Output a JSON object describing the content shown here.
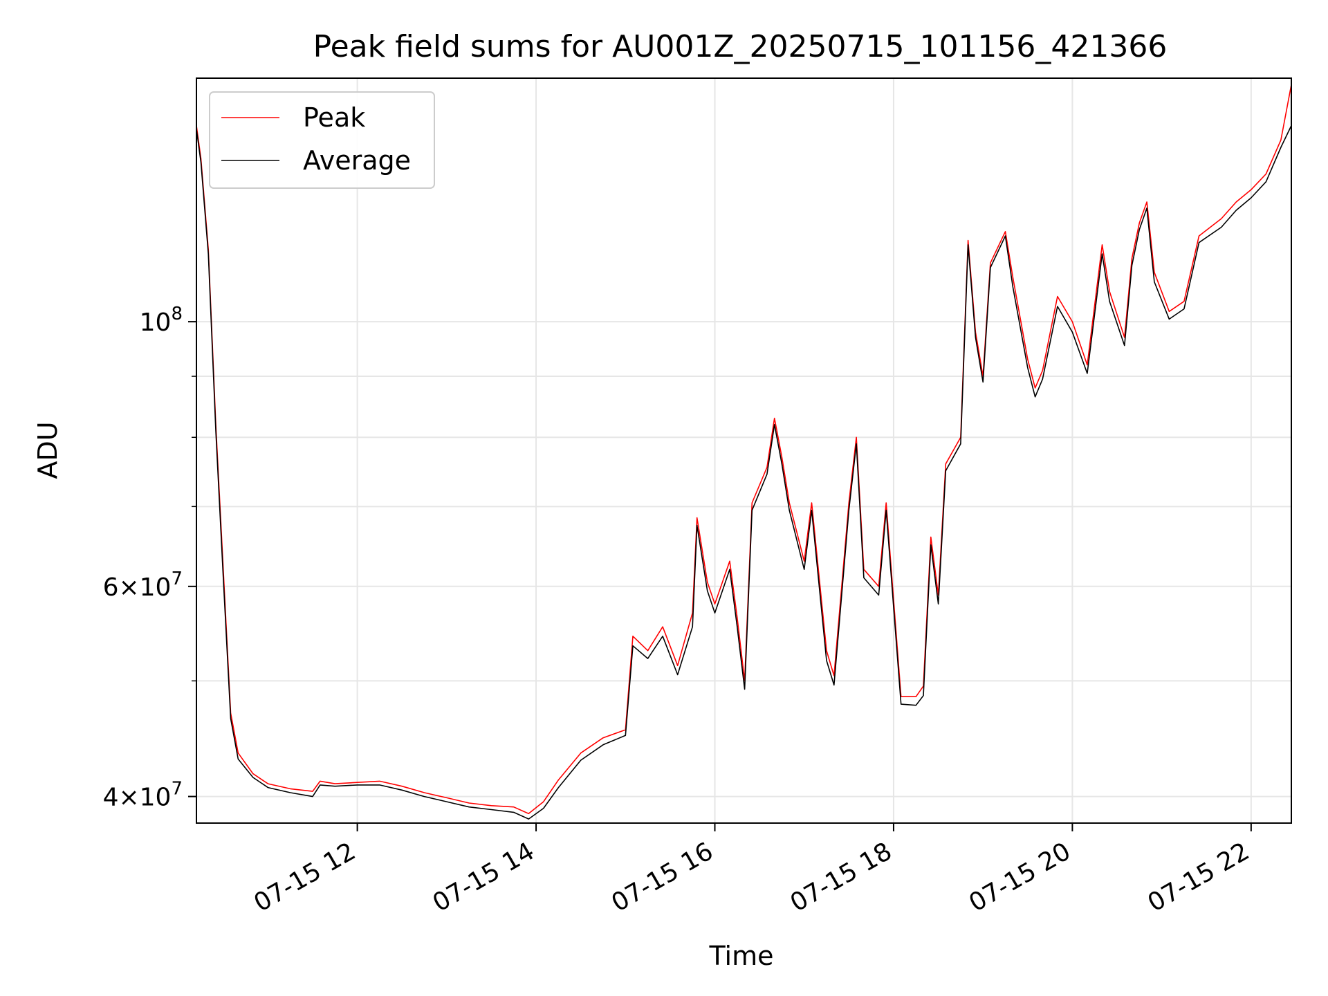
{
  "chart_data": {
    "type": "line",
    "title": "Peak field sums for AU001Z_20250715_101156_421366",
    "xlabel": "Time",
    "ylabel": "ADU",
    "y_scale": "log",
    "grid": true,
    "legend_position": "top-left",
    "xlim": [
      "2025-07-15T10:12",
      "2025-07-15T22:27"
    ],
    "ylim": [
      38000000,
      160000000
    ],
    "x_ticks": [
      {
        "value": "2025-07-15T12:00",
        "label": "07-15 12"
      },
      {
        "value": "2025-07-15T14:00",
        "label": "07-15 14"
      },
      {
        "value": "2025-07-15T16:00",
        "label": "07-15 16"
      },
      {
        "value": "2025-07-15T18:00",
        "label": "07-15 18"
      },
      {
        "value": "2025-07-15T20:00",
        "label": "07-15 20"
      },
      {
        "value": "2025-07-15T22:00",
        "label": "07-15 22"
      }
    ],
    "y_ticks": [
      {
        "value": 40000000,
        "label_mantissa": "4×10",
        "label_exp": "7"
      },
      {
        "value": 60000000,
        "label_mantissa": "6×10",
        "label_exp": "7"
      },
      {
        "value": 100000000,
        "label_mantissa": "10",
        "label_exp": "8"
      }
    ],
    "y_minor_ticks": [
      50000000,
      70000000,
      80000000,
      90000000
    ],
    "series": [
      {
        "name": "Peak",
        "color": "#ff0000",
        "points": [
          [
            "2025-07-15T10:12",
            146000000
          ],
          [
            "2025-07-15T10:15",
            137000000
          ],
          [
            "2025-07-15T10:20",
            115000000
          ],
          [
            "2025-07-15T10:25",
            82000000
          ],
          [
            "2025-07-15T10:30",
            62000000
          ],
          [
            "2025-07-15T10:35",
            47000000
          ],
          [
            "2025-07-15T10:40",
            43500000
          ],
          [
            "2025-07-15T10:50",
            41800000
          ],
          [
            "2025-07-15T11:00",
            41000000
          ],
          [
            "2025-07-15T11:15",
            40600000
          ],
          [
            "2025-07-15T11:30",
            40400000
          ],
          [
            "2025-07-15T11:35",
            41200000
          ],
          [
            "2025-07-15T11:45",
            41000000
          ],
          [
            "2025-07-15T12:00",
            41100000
          ],
          [
            "2025-07-15T12:15",
            41200000
          ],
          [
            "2025-07-15T12:30",
            40800000
          ],
          [
            "2025-07-15T12:45",
            40300000
          ],
          [
            "2025-07-15T13:00",
            39900000
          ],
          [
            "2025-07-15T13:15",
            39500000
          ],
          [
            "2025-07-15T13:30",
            39300000
          ],
          [
            "2025-07-15T13:45",
            39200000
          ],
          [
            "2025-07-15T13:55",
            38700000
          ],
          [
            "2025-07-15T14:05",
            39600000
          ],
          [
            "2025-07-15T14:15",
            41300000
          ],
          [
            "2025-07-15T14:30",
            43500000
          ],
          [
            "2025-07-15T14:45",
            44800000
          ],
          [
            "2025-07-15T15:00",
            45500000
          ],
          [
            "2025-07-15T15:05",
            54500000
          ],
          [
            "2025-07-15T15:15",
            53000000
          ],
          [
            "2025-07-15T15:25",
            55500000
          ],
          [
            "2025-07-15T15:35",
            51500000
          ],
          [
            "2025-07-15T15:45",
            57000000
          ],
          [
            "2025-07-15T15:48",
            68500000
          ],
          [
            "2025-07-15T15:55",
            60500000
          ],
          [
            "2025-07-15T16:00",
            58000000
          ],
          [
            "2025-07-15T16:10",
            63000000
          ],
          [
            "2025-07-15T16:15",
            56500000
          ],
          [
            "2025-07-15T16:20",
            50000000
          ],
          [
            "2025-07-15T16:25",
            70500000
          ],
          [
            "2025-07-15T16:35",
            75500000
          ],
          [
            "2025-07-15T16:40",
            83000000
          ],
          [
            "2025-07-15T16:45",
            77000000
          ],
          [
            "2025-07-15T16:50",
            70500000
          ],
          [
            "2025-07-15T17:00",
            63000000
          ],
          [
            "2025-07-15T17:05",
            70500000
          ],
          [
            "2025-07-15T17:15",
            53000000
          ],
          [
            "2025-07-15T17:20",
            50500000
          ],
          [
            "2025-07-15T17:30",
            70500000
          ],
          [
            "2025-07-15T17:35",
            80000000
          ],
          [
            "2025-07-15T17:40",
            62000000
          ],
          [
            "2025-07-15T17:50",
            60000000
          ],
          [
            "2025-07-15T17:55",
            70500000
          ],
          [
            "2025-07-15T18:05",
            48500000
          ],
          [
            "2025-07-15T18:15",
            48500000
          ],
          [
            "2025-07-15T18:20",
            49500000
          ],
          [
            "2025-07-15T18:25",
            66000000
          ],
          [
            "2025-07-15T18:30",
            59000000
          ],
          [
            "2025-07-15T18:35",
            76000000
          ],
          [
            "2025-07-15T18:45",
            80000000
          ],
          [
            "2025-07-15T18:50",
            117000000
          ],
          [
            "2025-07-15T18:55",
            98000000
          ],
          [
            "2025-07-15T19:00",
            90000000
          ],
          [
            "2025-07-15T19:05",
            112000000
          ],
          [
            "2025-07-15T19:15",
            119000000
          ],
          [
            "2025-07-15T19:20",
            109000000
          ],
          [
            "2025-07-15T19:30",
            93000000
          ],
          [
            "2025-07-15T19:35",
            88000000
          ],
          [
            "2025-07-15T19:40",
            91000000
          ],
          [
            "2025-07-15T19:50",
            105000000
          ],
          [
            "2025-07-15T20:00",
            100000000
          ],
          [
            "2025-07-15T20:10",
            92000000
          ],
          [
            "2025-07-15T20:20",
            116000000
          ],
          [
            "2025-07-15T20:25",
            106000000
          ],
          [
            "2025-07-15T20:35",
            97000000
          ],
          [
            "2025-07-15T20:40",
            113000000
          ],
          [
            "2025-07-15T20:45",
            121000000
          ],
          [
            "2025-07-15T20:50",
            126000000
          ],
          [
            "2025-07-15T20:55",
            110000000
          ],
          [
            "2025-07-15T21:05",
            102000000
          ],
          [
            "2025-07-15T21:15",
            104000000
          ],
          [
            "2025-07-15T21:25",
            118000000
          ],
          [
            "2025-07-15T21:40",
            122000000
          ],
          [
            "2025-07-15T21:50",
            126000000
          ],
          [
            "2025-07-15T22:00",
            129000000
          ],
          [
            "2025-07-15T22:10",
            133000000
          ],
          [
            "2025-07-15T22:20",
            142000000
          ],
          [
            "2025-07-15T22:27",
            158000000
          ]
        ]
      },
      {
        "name": "Average",
        "color": "#000000",
        "points": [
          [
            "2025-07-15T10:12",
            145000000
          ],
          [
            "2025-07-15T10:15",
            136000000
          ],
          [
            "2025-07-15T10:20",
            114000000
          ],
          [
            "2025-07-15T10:25",
            81000000
          ],
          [
            "2025-07-15T10:30",
            61000000
          ],
          [
            "2025-07-15T10:35",
            46500000
          ],
          [
            "2025-07-15T10:40",
            43000000
          ],
          [
            "2025-07-15T10:50",
            41500000
          ],
          [
            "2025-07-15T11:00",
            40700000
          ],
          [
            "2025-07-15T11:15",
            40300000
          ],
          [
            "2025-07-15T11:30",
            40000000
          ],
          [
            "2025-07-15T11:35",
            40900000
          ],
          [
            "2025-07-15T11:45",
            40800000
          ],
          [
            "2025-07-15T12:00",
            40900000
          ],
          [
            "2025-07-15T12:15",
            40900000
          ],
          [
            "2025-07-15T12:30",
            40500000
          ],
          [
            "2025-07-15T12:45",
            40000000
          ],
          [
            "2025-07-15T13:00",
            39600000
          ],
          [
            "2025-07-15T13:15",
            39200000
          ],
          [
            "2025-07-15T13:30",
            39000000
          ],
          [
            "2025-07-15T13:45",
            38800000
          ],
          [
            "2025-07-15T13:55",
            38300000
          ],
          [
            "2025-07-15T14:05",
            39100000
          ],
          [
            "2025-07-15T14:15",
            40700000
          ],
          [
            "2025-07-15T14:30",
            42900000
          ],
          [
            "2025-07-15T14:45",
            44200000
          ],
          [
            "2025-07-15T15:00",
            45000000
          ],
          [
            "2025-07-15T15:05",
            53500000
          ],
          [
            "2025-07-15T15:15",
            52200000
          ],
          [
            "2025-07-15T15:25",
            54500000
          ],
          [
            "2025-07-15T15:35",
            50600000
          ],
          [
            "2025-07-15T15:45",
            55500000
          ],
          [
            "2025-07-15T15:48",
            67500000
          ],
          [
            "2025-07-15T15:55",
            59500000
          ],
          [
            "2025-07-15T16:00",
            57000000
          ],
          [
            "2025-07-15T16:10",
            62000000
          ],
          [
            "2025-07-15T16:15",
            55500000
          ],
          [
            "2025-07-15T16:20",
            49200000
          ],
          [
            "2025-07-15T16:25",
            69500000
          ],
          [
            "2025-07-15T16:35",
            74500000
          ],
          [
            "2025-07-15T16:40",
            82000000
          ],
          [
            "2025-07-15T16:45",
            76000000
          ],
          [
            "2025-07-15T16:50",
            69500000
          ],
          [
            "2025-07-15T17:00",
            62000000
          ],
          [
            "2025-07-15T17:05",
            69500000
          ],
          [
            "2025-07-15T17:15",
            52000000
          ],
          [
            "2025-07-15T17:20",
            49600000
          ],
          [
            "2025-07-15T17:30",
            69500000
          ],
          [
            "2025-07-15T17:35",
            79000000
          ],
          [
            "2025-07-15T17:40",
            61000000
          ],
          [
            "2025-07-15T17:50",
            59000000
          ],
          [
            "2025-07-15T17:55",
            69500000
          ],
          [
            "2025-07-15T18:05",
            47800000
          ],
          [
            "2025-07-15T18:15",
            47700000
          ],
          [
            "2025-07-15T18:20",
            48600000
          ],
          [
            "2025-07-15T18:25",
            65000000
          ],
          [
            "2025-07-15T18:30",
            58000000
          ],
          [
            "2025-07-15T18:35",
            75000000
          ],
          [
            "2025-07-15T18:45",
            79000000
          ],
          [
            "2025-07-15T18:50",
            116000000
          ],
          [
            "2025-07-15T18:55",
            97000000
          ],
          [
            "2025-07-15T19:00",
            89000000
          ],
          [
            "2025-07-15T19:05",
            111000000
          ],
          [
            "2025-07-15T19:15",
            118000000
          ],
          [
            "2025-07-15T19:20",
            107000000
          ],
          [
            "2025-07-15T19:30",
            91500000
          ],
          [
            "2025-07-15T19:35",
            86500000
          ],
          [
            "2025-07-15T19:40",
            89500000
          ],
          [
            "2025-07-15T19:50",
            103000000
          ],
          [
            "2025-07-15T20:00",
            98000000
          ],
          [
            "2025-07-15T20:10",
            90500000
          ],
          [
            "2025-07-15T20:20",
            114000000
          ],
          [
            "2025-07-15T20:25",
            104000000
          ],
          [
            "2025-07-15T20:35",
            95500000
          ],
          [
            "2025-07-15T20:40",
            111500000
          ],
          [
            "2025-07-15T20:45",
            119500000
          ],
          [
            "2025-07-15T20:50",
            124500000
          ],
          [
            "2025-07-15T20:55",
            108000000
          ],
          [
            "2025-07-15T21:05",
            100500000
          ],
          [
            "2025-07-15T21:15",
            102500000
          ],
          [
            "2025-07-15T21:25",
            116500000
          ],
          [
            "2025-07-15T21:40",
            120000000
          ],
          [
            "2025-07-15T21:50",
            124000000
          ],
          [
            "2025-07-15T22:00",
            127000000
          ],
          [
            "2025-07-15T22:10",
            131000000
          ],
          [
            "2025-07-15T22:20",
            140000000
          ],
          [
            "2025-07-15T22:27",
            146000000
          ]
        ]
      }
    ]
  }
}
